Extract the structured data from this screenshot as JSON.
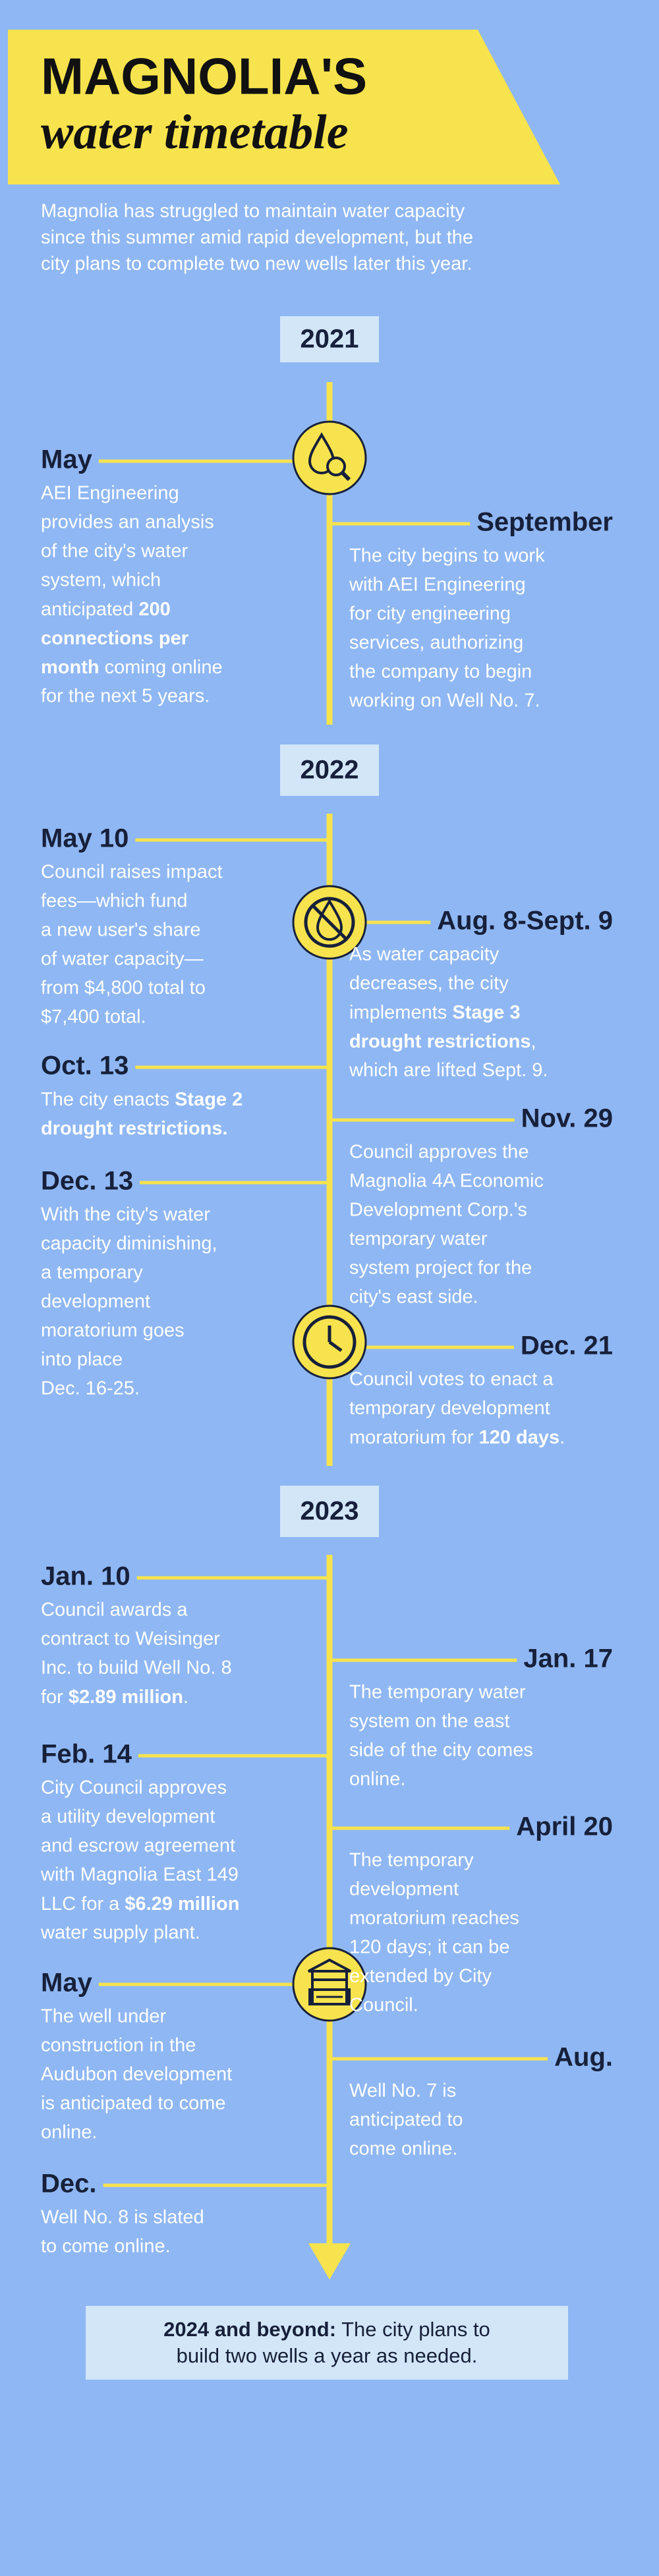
{
  "header": {
    "title": "MAGNOLIA'S",
    "subtitle": "water timetable",
    "intro": [
      "Magnolia has struggled to maintain water capacity",
      "since this summer amid rapid development, but the",
      "city plans to complete two new wells later this year."
    ]
  },
  "sections": [
    {
      "year": "2021",
      "events": [
        {
          "side": "left",
          "date": "May",
          "lines": [
            "AEI Engineering",
            "provides an analysis",
            "of the city's water",
            "system, which",
            [
              "anticipated ",
              {
                "text": "200",
                "bold": true
              }
            ],
            [
              {
                "text": "connections per",
                "bold": true
              }
            ],
            [
              {
                "text": "month",
                "bold": true
              },
              " coming online"
            ],
            "for the next 5 years."
          ]
        },
        {
          "side": "right",
          "date": "September",
          "lines": [
            "The city begins to work",
            "with AEI Engineering",
            "for city engineering",
            "services, authorizing",
            "the company to begin",
            "working on Well No. 7."
          ]
        }
      ]
    },
    {
      "year": "2022",
      "events": [
        {
          "side": "left",
          "date": "May 10",
          "lines": [
            "Council raises impact",
            "fees—which fund",
            "a new user's share",
            "of water capacity—",
            "from $4,800 total to",
            "$7,400 total."
          ]
        },
        {
          "side": "right",
          "date": "Aug. 8-Sept. 9",
          "lines": [
            "As water capacity",
            "decreases, the city",
            [
              "implements ",
              {
                "text": "Stage 3",
                "bold": true
              }
            ],
            [
              {
                "text": "drought restrictions",
                "bold": true
              },
              ","
            ],
            "which are lifted Sept. 9."
          ]
        },
        {
          "side": "left",
          "date": "Oct. 13",
          "lines": [
            [
              "The city enacts ",
              {
                "text": "Stage 2",
                "bold": true
              }
            ],
            [
              {
                "text": "drought restrictions.",
                "bold": true
              }
            ]
          ]
        },
        {
          "side": "right",
          "date": "Nov. 29",
          "lines": [
            "Council approves the",
            "Magnolia 4A Economic",
            "Development Corp.'s",
            "temporary water",
            "system project for the",
            "city's east side."
          ]
        },
        {
          "side": "left",
          "date": "Dec. 13",
          "lines": [
            "With the city's water",
            "capacity diminishing,",
            "a temporary",
            "development",
            "moratorium goes",
            "into place",
            "Dec. 16-25."
          ]
        },
        {
          "side": "right",
          "date": "Dec. 21",
          "lines": [
            "Council votes to enact a",
            "temporary development",
            [
              "moratorium for ",
              {
                "text": "120 days",
                "bold": true
              },
              "."
            ]
          ]
        }
      ]
    },
    {
      "year": "2023",
      "events": [
        {
          "side": "left",
          "date": "Jan. 10",
          "lines": [
            "Council awards a",
            "contract to Weisinger",
            "Inc. to build Well No. 8",
            [
              "for ",
              {
                "text": "$2.89 million",
                "bold": true
              },
              "."
            ]
          ]
        },
        {
          "side": "right",
          "date": "Jan. 17",
          "lines": [
            "The temporary water",
            "system on the east",
            "side of the city comes",
            "online."
          ]
        },
        {
          "side": "left",
          "date": "Feb. 14",
          "lines": [
            "City Council approves",
            "a utility development",
            "and escrow agreement",
            "with Magnolia East 149",
            [
              "LLC for a ",
              {
                "text": "$6.29 million",
                "bold": true
              }
            ],
            "water supply plant."
          ]
        },
        {
          "side": "right",
          "date": "April 20",
          "lines": [
            "The temporary",
            "development",
            "moratorium reaches",
            "120 days; it can be",
            "extended by City",
            "Council."
          ]
        },
        {
          "side": "left",
          "date": "May",
          "lines": [
            "The well under",
            "construction in the",
            "Audubon development",
            "is anticipated to come",
            "online."
          ]
        },
        {
          "side": "right",
          "date": "Aug.",
          "lines": [
            "Well No. 7 is",
            "anticipated to",
            "come online."
          ]
        },
        {
          "side": "left",
          "date": "Dec.",
          "lines": [
            "Well No. 8 is slated",
            "to come online."
          ]
        }
      ]
    }
  ],
  "footer": {
    "lines": [
      [
        {
          "text": "2024 and beyond:",
          "bold": true
        },
        " The city plans to"
      ],
      [
        "build two wells a year as needed."
      ]
    ]
  }
}
